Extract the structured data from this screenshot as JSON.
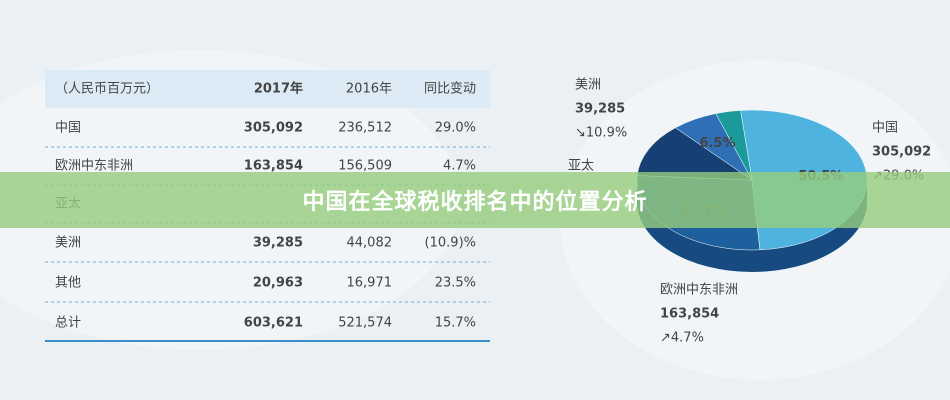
{
  "banner": {
    "title": "中国在全球税收排名中的位置分析"
  },
  "table": {
    "header": [
      "（人民币百万元）",
      "2017年",
      "2016年",
      "同比变动"
    ],
    "rows": [
      [
        "中国",
        "305,092",
        "236,512",
        "29.0%"
      ],
      [
        "欧洲中东非洲",
        "163,854",
        "156,509",
        "4.7%"
      ],
      [
        "亚太"
      ],
      [
        "美洲",
        "39,285",
        "44,082",
        "(10.9)%"
      ],
      [
        "其他",
        "20,963",
        "16,971",
        "23.5%"
      ],
      [
        "总计",
        "603,621",
        "521,574",
        "15.7%"
      ]
    ]
  },
  "callouts": [
    {
      "name": "美洲",
      "amount": "39,285",
      "change": "↘10.9%"
    },
    {
      "name": "亚太"
    },
    {
      "name": "中国",
      "amount": "305,092",
      "change": "↗29.0%"
    },
    {
      "name": "欧洲中东非洲",
      "amount": "163,854",
      "change": "↗4.7%"
    }
  ],
  "chart_data": {
    "type": "pie",
    "categories": [
      null,
      null,
      null,
      null,
      null
    ],
    "values": [
      50.5,
      27.1,
      12.4,
      6.5,
      3.5
    ],
    "value_labels": [
      "50.5%",
      "27.1%",
      null,
      "6.5%",
      null
    ],
    "colors": [
      "#4fb3e0",
      "#1e5f9e",
      "#163f73",
      "#2e6fb5",
      "#1a9a9a"
    ]
  }
}
